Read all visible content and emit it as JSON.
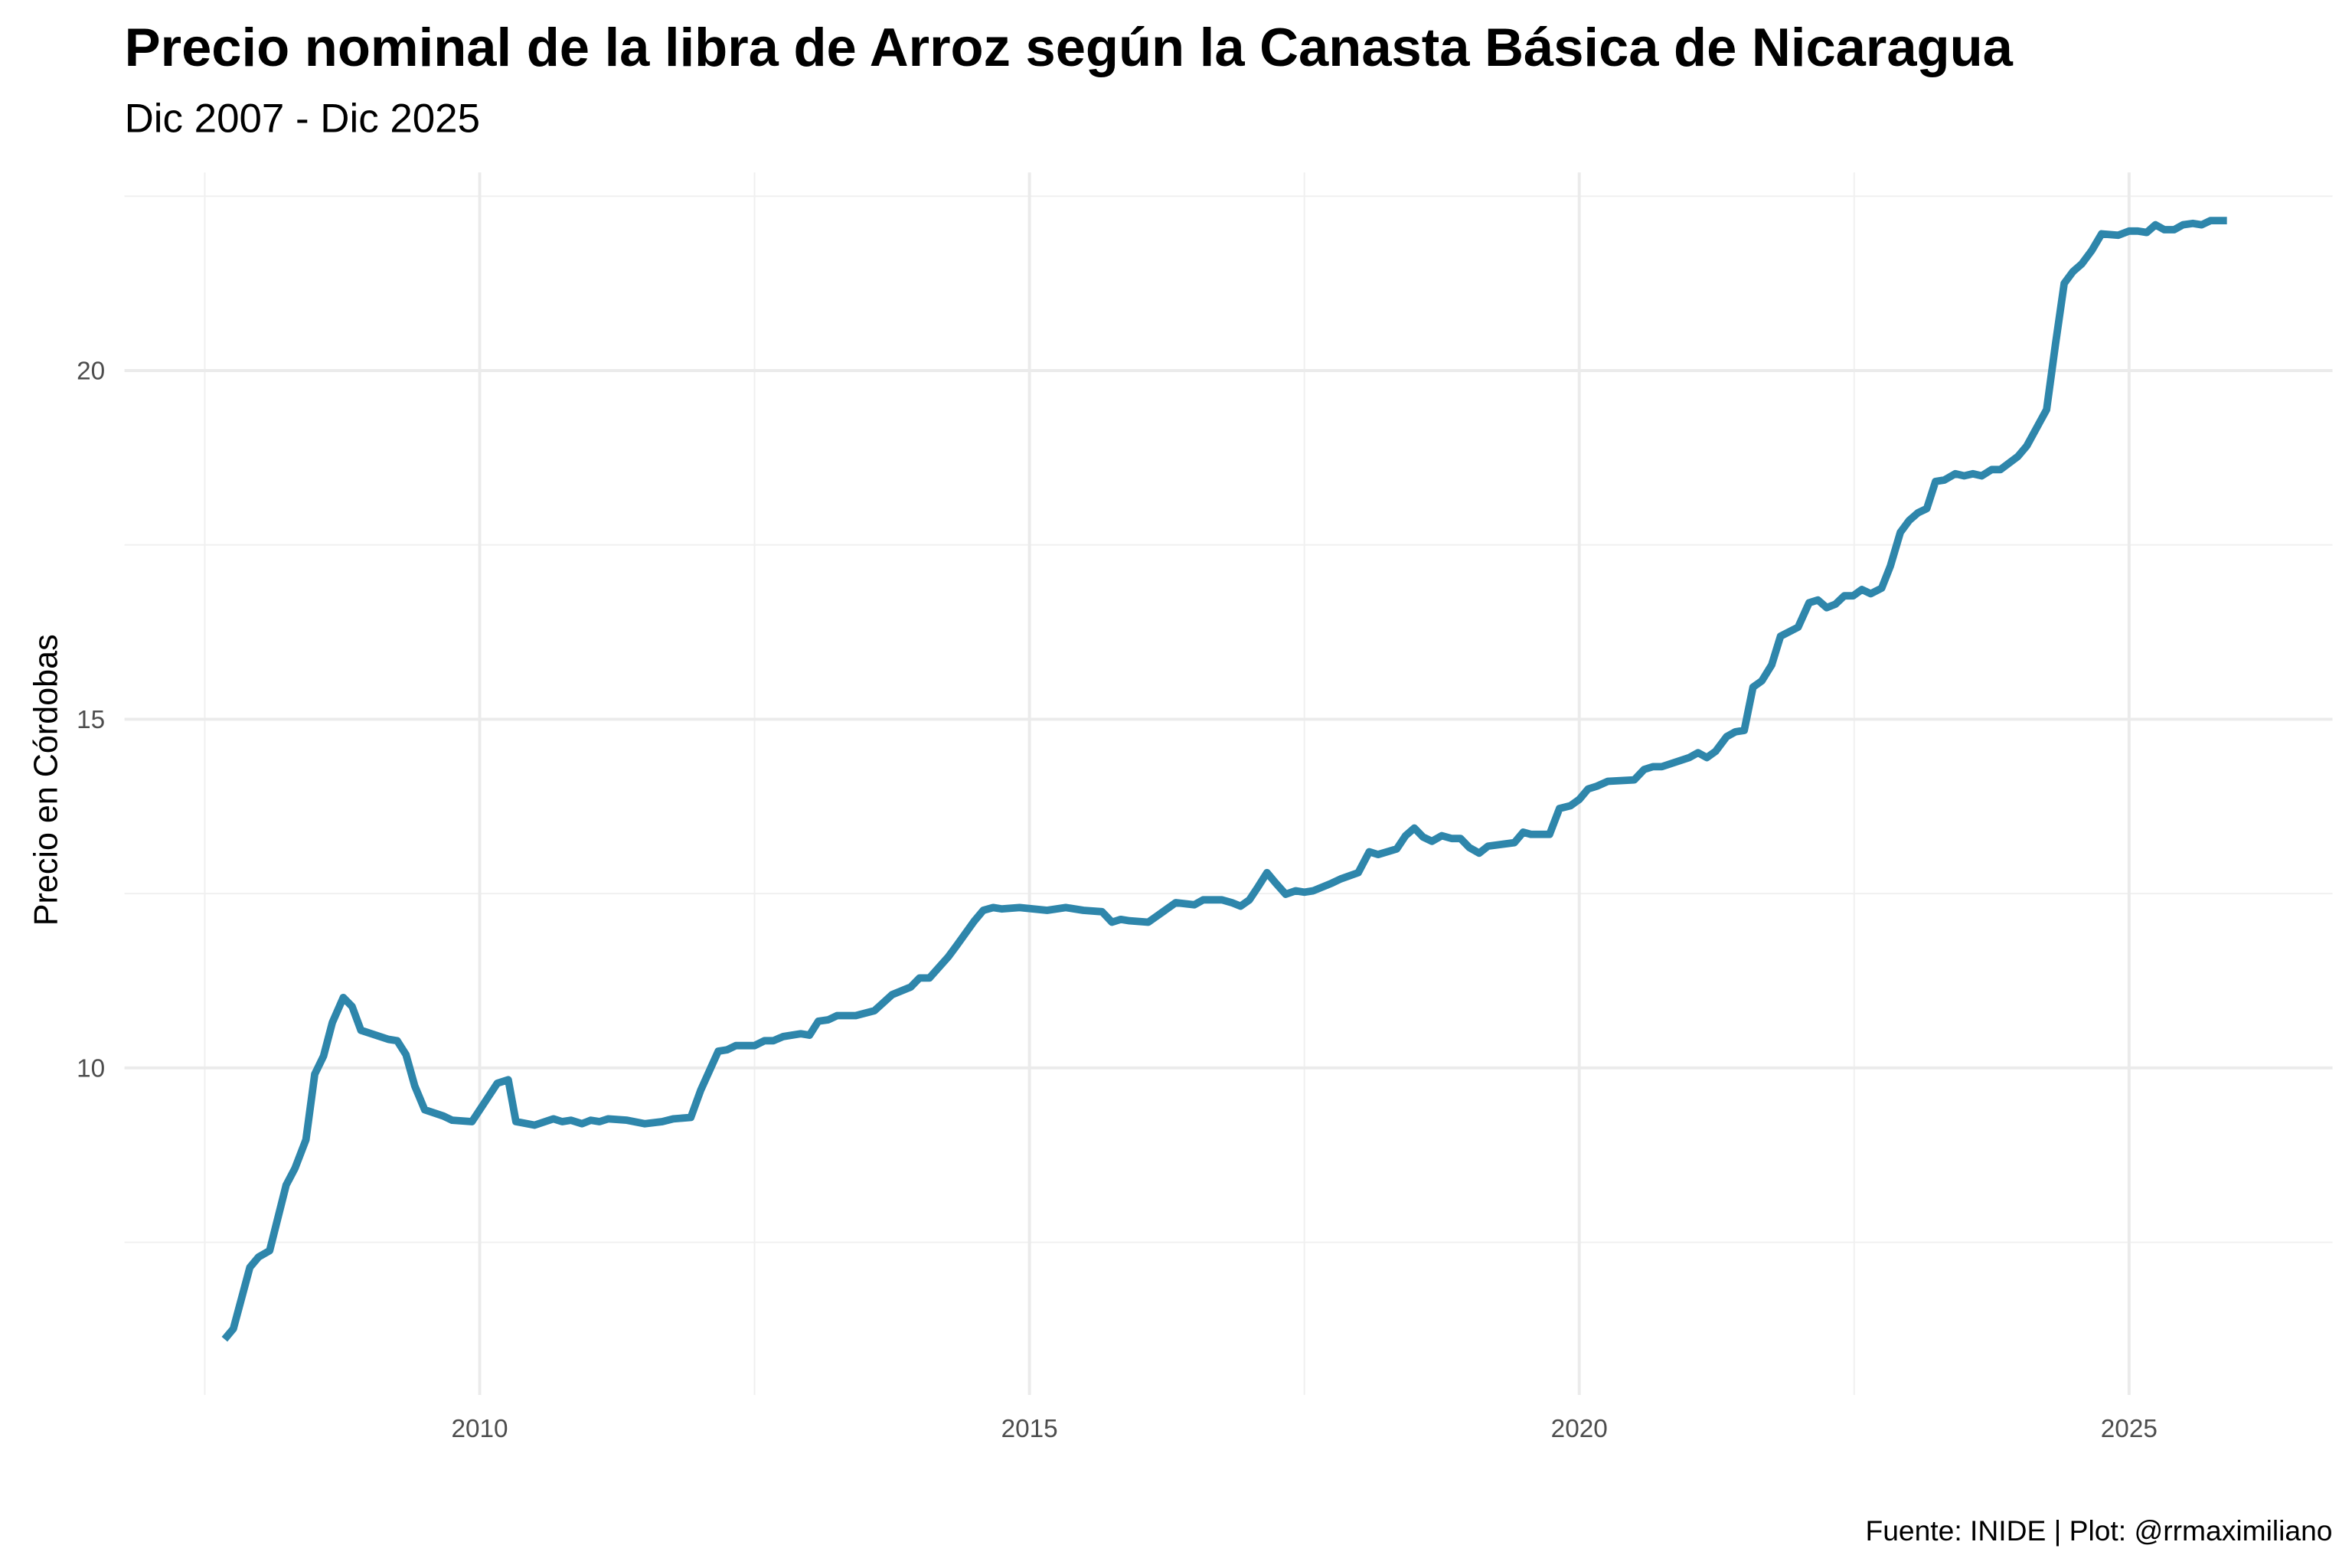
{
  "chart_data": {
    "type": "line",
    "title": "Precio nominal de la libra de Arroz según la Canasta Básica de Nicaragua",
    "subtitle": "Dic 2007 - Dic 2025",
    "y_label": "Precio en Córdobas",
    "caption": "Fuente: INIDE | Plot: @rrmaximiliano",
    "color": "#2e86ab",
    "grid": true,
    "xlim": [
      2006.77,
      2026.85
    ],
    "ylim": [
      5.31,
      22.84
    ],
    "xticks": [
      2010,
      2015,
      2020,
      2025
    ],
    "yticks": [
      10,
      15,
      20
    ],
    "x_minor_grid": [
      2007.5,
      2012.5,
      2017.5,
      2022.5
    ],
    "y_minor_grid": [
      7.5,
      12.5,
      17.5,
      22.5
    ],
    "x": [
      2007.68,
      2007.76,
      2007.91,
      2007.99,
      2008.09,
      2008.24,
      2008.32,
      2008.42,
      2008.5,
      2008.58,
      2008.66,
      2008.76,
      2008.84,
      2008.92,
      2009.17,
      2009.25,
      2009.33,
      2009.41,
      2009.5,
      2009.67,
      2009.75,
      2009.93,
      2010.16,
      2010.26,
      2010.33,
      2010.5,
      2010.67,
      2010.75,
      2010.83,
      2010.93,
      2011.01,
      2011.09,
      2011.17,
      2011.34,
      2011.5,
      2011.66,
      2011.76,
      2011.92,
      2012.01,
      2012.17,
      2012.25,
      2012.33,
      2012.5,
      2012.59,
      2012.67,
      2012.76,
      2012.92,
      2013.0,
      2013.08,
      2013.17,
      2013.25,
      2013.42,
      2013.59,
      2013.75,
      2013.92,
      2014.0,
      2014.09,
      2014.26,
      2014.34,
      2014.5,
      2014.58,
      2014.67,
      2014.75,
      2014.91,
      2015.16,
      2015.33,
      2015.49,
      2015.66,
      2015.75,
      2015.83,
      2015.91,
      2016.08,
      2016.17,
      2016.33,
      2016.5,
      2016.58,
      2016.75,
      2016.84,
      2016.92,
      2017.0,
      2017.08,
      2017.16,
      2017.24,
      2017.33,
      2017.42,
      2017.5,
      2017.58,
      2017.75,
      2017.83,
      2017.99,
      2018.09,
      2018.17,
      2018.34,
      2018.42,
      2018.5,
      2018.58,
      2018.66,
      2018.75,
      2018.84,
      2018.92,
      2019.0,
      2019.09,
      2019.17,
      2019.41,
      2019.49,
      2019.56,
      2019.73,
      2019.82,
      2019.92,
      2020.0,
      2020.08,
      2020.16,
      2020.26,
      2020.5,
      2020.59,
      2020.67,
      2020.75,
      2021.0,
      2021.08,
      2021.16,
      2021.24,
      2021.34,
      2021.42,
      2021.5,
      2021.58,
      2021.66,
      2021.75,
      2021.83,
      2021.99,
      2022.09,
      2022.17,
      2022.25,
      2022.33,
      2022.41,
      2022.49,
      2022.57,
      2022.65,
      2022.75,
      2022.83,
      2022.92,
      2023.0,
      2023.08,
      2023.16,
      2023.24,
      2023.32,
      2023.42,
      2023.5,
      2023.58,
      2023.66,
      2023.75,
      2023.83,
      2023.99,
      2024.07,
      2024.25,
      2024.33,
      2024.41,
      2024.49,
      2024.57,
      2024.66,
      2024.75,
      2024.9,
      2025.0,
      2025.08,
      2025.16,
      2025.24,
      2025.32,
      2025.41,
      2025.49,
      2025.58,
      2025.66,
      2025.74,
      2025.89
    ],
    "values": [
      6.11,
      6.26,
      7.14,
      7.29,
      7.38,
      8.32,
      8.56,
      8.97,
      9.91,
      10.17,
      10.65,
      11.01,
      10.88,
      10.54,
      10.41,
      10.39,
      10.19,
      9.74,
      9.4,
      9.31,
      9.25,
      9.23,
      9.78,
      9.83,
      9.23,
      9.18,
      9.27,
      9.23,
      9.25,
      9.2,
      9.25,
      9.23,
      9.27,
      9.25,
      9.2,
      9.23,
      9.27,
      9.29,
      9.68,
      10.24,
      10.26,
      10.32,
      10.32,
      10.39,
      10.39,
      10.45,
      10.49,
      10.47,
      10.67,
      10.69,
      10.75,
      10.75,
      10.82,
      11.05,
      11.16,
      11.29,
      11.29,
      11.59,
      11.76,
      12.11,
      12.26,
      12.3,
      12.28,
      12.3,
      12.26,
      12.3,
      12.26,
      12.24,
      12.09,
      12.13,
      12.11,
      12.09,
      12.19,
      12.37,
      12.34,
      12.41,
      12.41,
      12.37,
      12.32,
      12.41,
      12.6,
      12.8,
      12.65,
      12.49,
      12.54,
      12.52,
      12.54,
      12.65,
      12.71,
      12.8,
      13.1,
      13.06,
      13.14,
      13.33,
      13.44,
      13.31,
      13.25,
      13.33,
      13.29,
      13.29,
      13.16,
      13.08,
      13.18,
      13.23,
      13.38,
      13.35,
      13.35,
      13.72,
      13.76,
      13.85,
      14.0,
      14.04,
      14.11,
      14.13,
      14.28,
      14.32,
      14.32,
      14.45,
      14.52,
      14.45,
      14.54,
      14.75,
      14.82,
      14.84,
      15.46,
      15.55,
      15.78,
      16.19,
      16.32,
      16.67,
      16.71,
      16.6,
      16.65,
      16.77,
      16.77,
      16.86,
      16.8,
      16.88,
      17.2,
      17.68,
      17.85,
      17.96,
      18.02,
      18.41,
      18.43,
      18.52,
      18.49,
      18.52,
      18.49,
      18.58,
      18.58,
      18.77,
      18.92,
      19.44,
      20.37,
      21.25,
      21.42,
      21.53,
      21.72,
      21.96,
      21.94,
      22.0,
      22.0,
      21.98,
      22.09,
      22.02,
      22.02,
      22.09,
      22.11,
      22.09,
      22.15,
      22.15
    ]
  }
}
